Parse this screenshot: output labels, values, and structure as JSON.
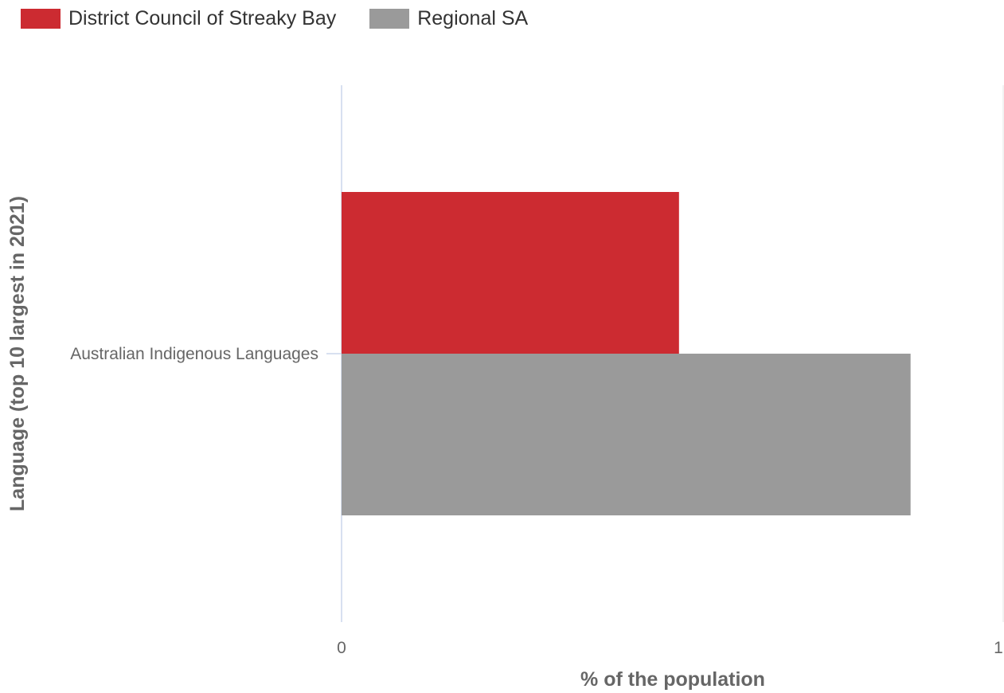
{
  "chart_data": {
    "type": "bar",
    "orientation": "horizontal",
    "categories": [
      "Australian Indigenous Languages"
    ],
    "series": [
      {
        "name": "District Council of Streaky Bay",
        "color": "#cc2b31",
        "values": [
          0.51
        ]
      },
      {
        "name": "Regional SA",
        "color": "#9a9a9a",
        "values": [
          0.86
        ]
      }
    ],
    "xlabel": "% of the population",
    "ylabel": "Language (top 10 largest in 2021)",
    "xlim": [
      0,
      1
    ],
    "xticks": [
      "0",
      "1"
    ],
    "legend_position": "top-left",
    "grid": false
  }
}
